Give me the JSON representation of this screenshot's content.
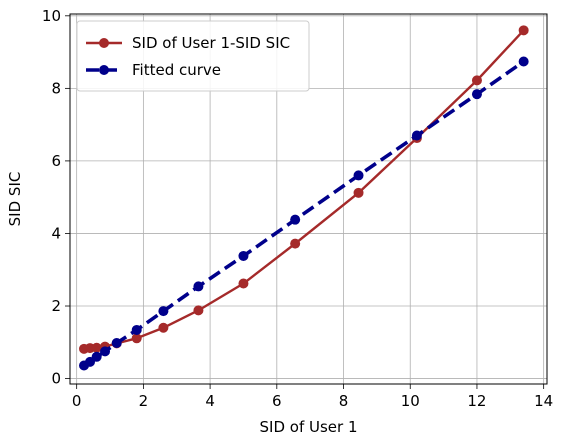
{
  "chart_data": {
    "type": "line",
    "xlabel": "SID of User 1",
    "ylabel": "SID SIC",
    "xlim": [
      -0.2,
      14.1
    ],
    "ylim": [
      -0.15,
      10.05
    ],
    "xticks": [
      0,
      2,
      4,
      6,
      8,
      10,
      12,
      14
    ],
    "yticks": [
      0,
      2,
      4,
      6,
      8,
      10
    ],
    "grid": true,
    "legend_position": "top-left",
    "series": [
      {
        "name": "SID of User 1-SID SIC",
        "color": "#a52a2a",
        "style": "solid",
        "marker": "circle",
        "x": [
          0.22,
          0.4,
          0.6,
          0.85,
          1.2,
          1.8,
          2.6,
          3.65,
          5.0,
          6.55,
          8.45,
          10.2,
          12.0,
          13.4
        ],
        "y": [
          0.82,
          0.84,
          0.85,
          0.88,
          0.97,
          1.11,
          1.4,
          1.88,
          2.62,
          3.72,
          5.12,
          6.63,
          8.22,
          9.6
        ]
      },
      {
        "name": "Fitted curve",
        "color": "#00008b",
        "style": "dashed",
        "marker": "circle",
        "x": [
          0.22,
          0.4,
          0.6,
          0.85,
          1.2,
          1.8,
          2.6,
          3.65,
          5.0,
          6.55,
          8.45,
          10.2,
          12.0,
          13.4
        ],
        "y": [
          0.36,
          0.46,
          0.6,
          0.75,
          0.98,
          1.34,
          1.86,
          2.54,
          3.38,
          4.38,
          5.6,
          6.7,
          7.84,
          8.74
        ]
      }
    ]
  }
}
